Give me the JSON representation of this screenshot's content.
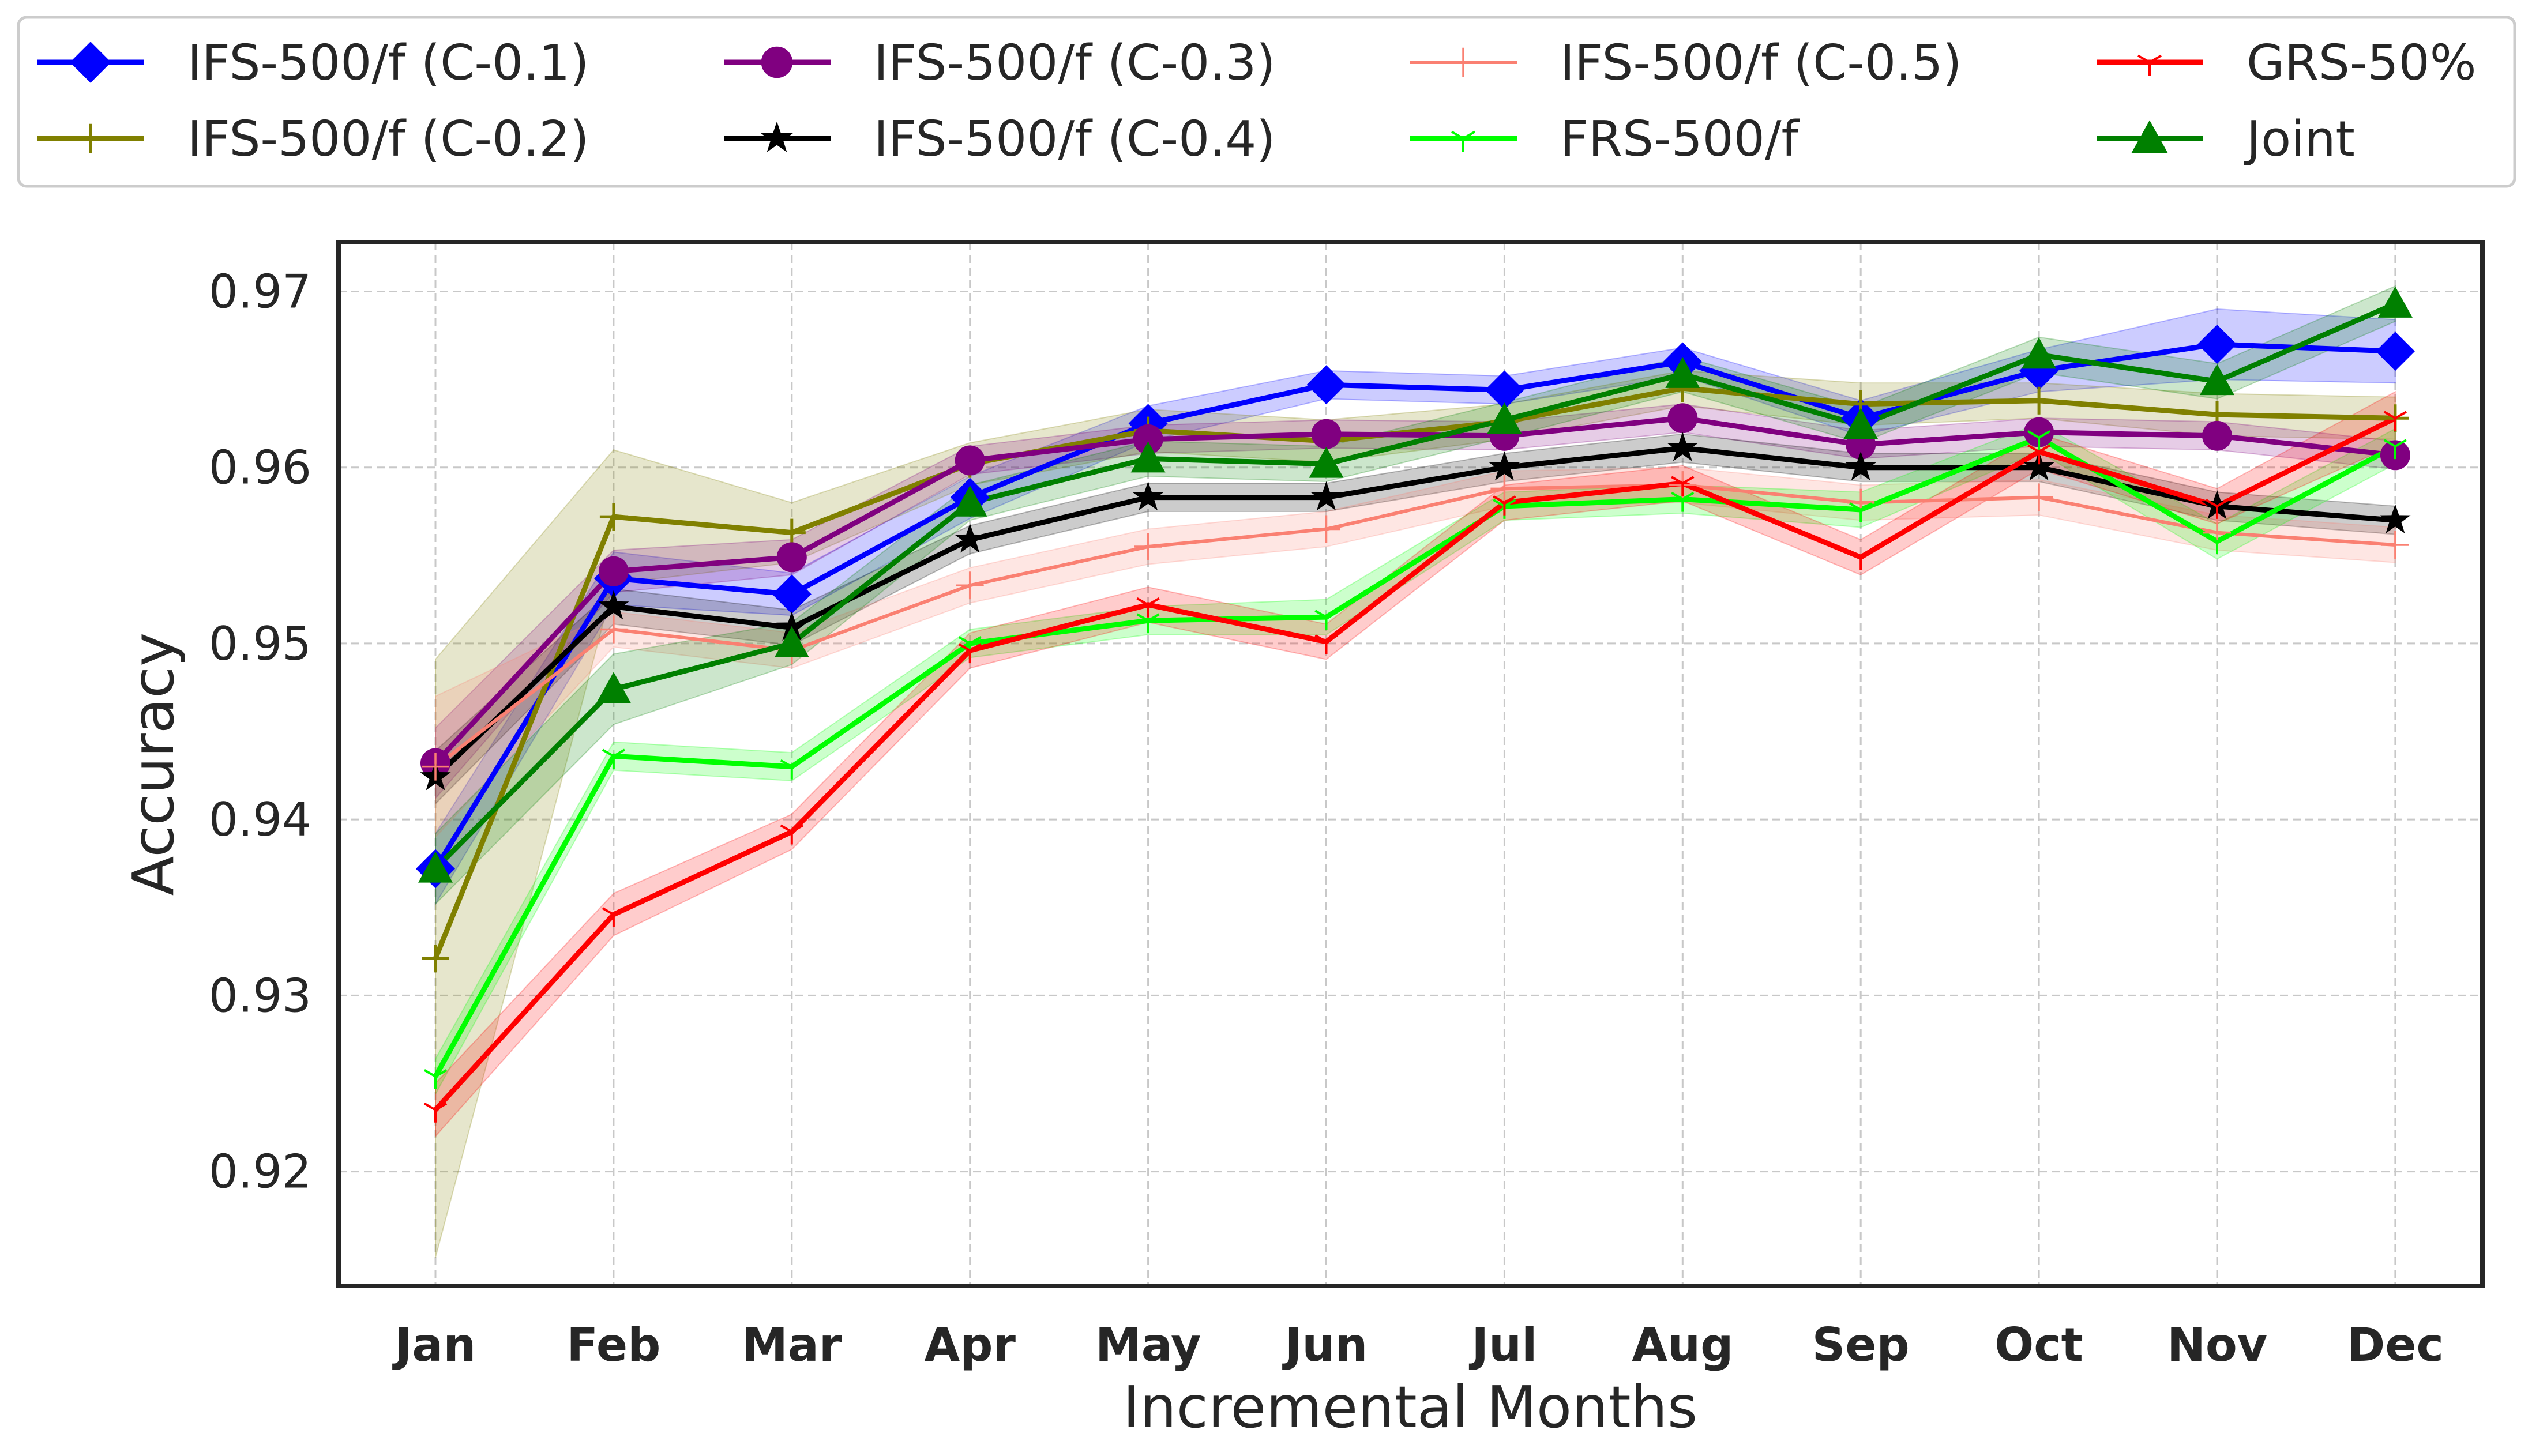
{
  "chart_data": {
    "type": "line",
    "xlabel": "Incremental Months",
    "ylabel": "Accuracy",
    "categories": [
      "Jan",
      "Feb",
      "Mar",
      "Apr",
      "May",
      "Jun",
      "Jul",
      "Aug",
      "Sep",
      "Oct",
      "Nov",
      "Dec"
    ],
    "ylim": [
      0.9135,
      0.9728
    ],
    "yticks": [
      "0.92",
      "0.93",
      "0.94",
      "0.95",
      "0.96",
      "0.97"
    ],
    "grid": true,
    "legend_position": "top",
    "series": [
      {
        "name": "IFS-500/f (C-0.1)",
        "color": "#0000ff",
        "marker": "diamond",
        "values": [
          0.9372,
          0.9537,
          0.9528,
          0.9583,
          0.9625,
          0.9647,
          0.9644,
          0.966,
          0.9628,
          0.9655,
          0.967,
          0.9666
        ],
        "band": [
          0.002,
          0.0015,
          0.0012,
          0.0012,
          0.001,
          0.0008,
          0.0008,
          0.0008,
          0.001,
          0.0012,
          0.002,
          0.0018
        ]
      },
      {
        "name": "IFS-500/f (C-0.2)",
        "color": "#808000",
        "marker": "plus",
        "values": [
          0.9321,
          0.9572,
          0.9563,
          0.9602,
          0.9621,
          0.9615,
          0.9626,
          0.9645,
          0.9636,
          0.9638,
          0.963,
          0.9628
        ],
        "band": [
          0.017,
          0.0038,
          0.0017,
          0.0012,
          0.0012,
          0.0012,
          0.001,
          0.001,
          0.0012,
          0.001,
          0.0012,
          0.0012
        ]
      },
      {
        "name": "IFS-500/f (C-0.3)",
        "color": "#800080",
        "marker": "circle",
        "values": [
          0.9432,
          0.9541,
          0.9549,
          0.9604,
          0.9616,
          0.9619,
          0.9618,
          0.9628,
          0.9613,
          0.962,
          0.9618,
          0.9607
        ],
        "band": [
          0.002,
          0.0012,
          0.001,
          0.0008,
          0.0008,
          0.0008,
          0.0008,
          0.0008,
          0.0008,
          0.0008,
          0.0008,
          0.0008
        ]
      },
      {
        "name": "IFS-500/f (C-0.4)",
        "color": "#000000",
        "marker": "star",
        "values": [
          0.9424,
          0.9521,
          0.9509,
          0.9559,
          0.9583,
          0.9583,
          0.96,
          0.9611,
          0.96,
          0.96,
          0.9578,
          0.957
        ],
        "band": [
          0.0015,
          0.001,
          0.001,
          0.0008,
          0.0008,
          0.0008,
          0.0008,
          0.0008,
          0.0008,
          0.0008,
          0.0008,
          0.0008
        ]
      },
      {
        "name": "IFS-500/f (C-0.5)",
        "color": "#fa8072",
        "marker": "thin-plus",
        "values": [
          0.943,
          0.9508,
          0.9496,
          0.9533,
          0.9555,
          0.9565,
          0.9588,
          0.959,
          0.958,
          0.9583,
          0.9563,
          0.9556
        ],
        "band": [
          0.004,
          0.001,
          0.001,
          0.001,
          0.001,
          0.001,
          0.001,
          0.001,
          0.001,
          0.001,
          0.001,
          0.001
        ]
      },
      {
        "name": "FRS-500/f",
        "color": "#00ff00",
        "marker": "tri",
        "values": [
          0.9254,
          0.9436,
          0.943,
          0.95,
          0.9513,
          0.9515,
          0.9578,
          0.9582,
          0.9576,
          0.9617,
          0.9558,
          0.9612
        ],
        "band": [
          0.001,
          0.0008,
          0.0008,
          0.0008,
          0.0008,
          0.001,
          0.0008,
          0.0008,
          0.001,
          0.0008,
          0.001,
          0.001
        ]
      },
      {
        "name": "GRS-50%",
        "color": "#ff0000",
        "marker": "tri",
        "values": [
          0.9235,
          0.9346,
          0.9393,
          0.9496,
          0.9522,
          0.9501,
          0.958,
          0.9591,
          0.9549,
          0.9609,
          0.9578,
          0.9628
        ],
        "band": [
          0.0015,
          0.0012,
          0.001,
          0.001,
          0.001,
          0.001,
          0.001,
          0.001,
          0.001,
          0.001,
          0.001,
          0.0015
        ]
      },
      {
        "name": "Joint",
        "color": "#008000",
        "marker": "triangle",
        "values": [
          0.9372,
          0.9474,
          0.95,
          0.958,
          0.9605,
          0.9602,
          0.9627,
          0.9653,
          0.9624,
          0.9664,
          0.9649,
          0.9693
        ],
        "band": [
          0.002,
          0.002,
          0.0012,
          0.001,
          0.001,
          0.001,
          0.001,
          0.001,
          0.001,
          0.001,
          0.001,
          0.001
        ]
      }
    ]
  }
}
